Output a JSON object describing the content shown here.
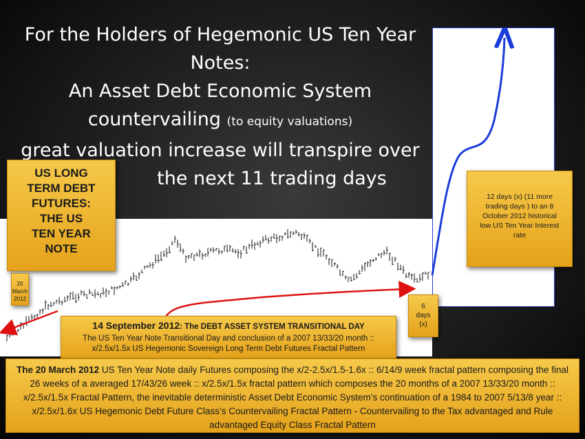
{
  "title": {
    "line1": "For the Holders of Hegemonic US Ten Year",
    "line2": "Notes:",
    "line3": "An Asset Debt Economic System",
    "line4_main": "countervailing",
    "line4_small": "(to equity valuations)",
    "line5": "great valuation increase will transpire over",
    "line6": "the next 11 trading days"
  },
  "futures_box": {
    "line1": "US LONG",
    "line2": "TERM DEBT",
    "line3": "FUTURES:",
    "line4": "THE  US",
    "line5": "TEN YEAR",
    "line6": "NOTE"
  },
  "march_box": {
    "line1": "20",
    "line2": "March",
    "line3": "2012"
  },
  "twelve_box": {
    "text": "12 days  (x) (11 more trading days ) to an 8 October 2012 historical low US Ten Year Interest rate"
  },
  "six_box": {
    "line1": "6",
    "line2": "days",
    "line3": "(x)"
  },
  "sept_box": {
    "heading": "14 September 2012",
    "subheading": ":  The DEBT ASSET SYSTEM TRANSITIONAL DAY",
    "line1": "The US Ten Year Note Transitional Day and conclusion of a 2007 13/33/20 month ::",
    "line2": "x/2.5x/1.5x  US Hegemonic  Sovereign Long Term Debt Futures Fractal Pattern"
  },
  "bottom_box": {
    "lead": "The 20 March 2012",
    "text": "  US Ten Year  Note daily  Futures  composing the x/2-2.5x/1.5-1.6x :: 6/14/9 week  fractal pattern composing the final 26 weeks of a averaged 17/43/26 week :: x/2.5x/1.5x fractal pattern which composes the 20 months of a 2007  13/33/20 month  :: x/2.5x/1.5x  Fractal Pattern,  the inevitable deterministic Asset Debt Economic System’s  continuation of a 1984 to 2007 5/13/8 year :: x/2.5x/1.6x US Hegemonic Debt Future Class’s Countervailing Fractal Pattern  - Countervailing to the Tax advantaged and Rule advantaged Equity Class Fractal Pattern"
  },
  "colors": {
    "gold_top": "#f6c94a",
    "gold_bottom": "#e5a21a",
    "arrow_red": "#e01010",
    "projection_blue": "#1a3cd8"
  }
}
